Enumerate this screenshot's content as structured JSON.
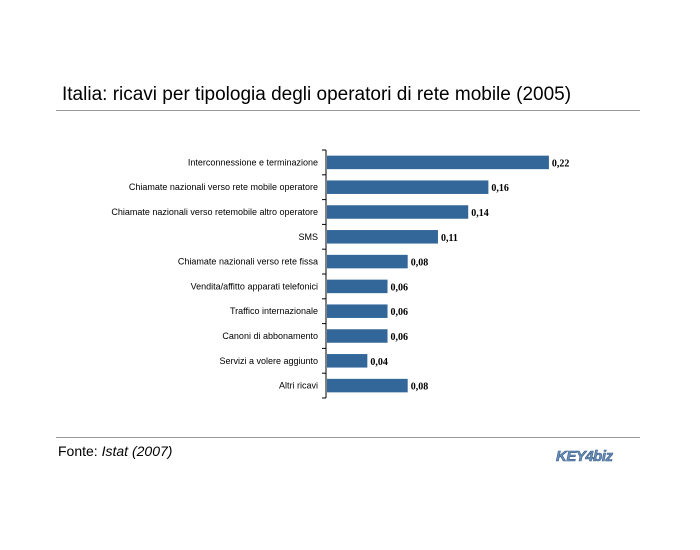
{
  "title": "Italia: ricavi per tipologia degli operatori di rete mobile (2005)",
  "source": {
    "label": "Fonte:",
    "name": "Istat",
    "year": "(2007)"
  },
  "logo": {
    "text": "KEY4biz"
  },
  "colors": {
    "bar": "#336699",
    "axis": "#000000"
  },
  "chart_data": {
    "type": "bar",
    "orientation": "horizontal",
    "categories": [
      "Interconnessione e terminazione",
      "Chiamate nazionali verso rete mobile operatore",
      "Chiamate nazionali verso retemobile altro operatore",
      "SMS",
      "Chiamate nazionali verso rete fissa",
      "Vendita/affitto apparati telefonici",
      "Traffico internazionale",
      "Canoni di abbonamento",
      "Servizi a volere aggiunto",
      "Altri ricavi"
    ],
    "values": [
      0.22,
      0.16,
      0.14,
      0.11,
      0.08,
      0.06,
      0.06,
      0.06,
      0.04,
      0.08
    ],
    "value_labels": [
      "0,22",
      "0,16",
      "0,14",
      "0,11",
      "0,08",
      "0,06",
      "0,06",
      "0,06",
      "0,04",
      "0,08"
    ],
    "xlim": [
      0,
      0.23
    ],
    "grid": false,
    "legend": "none"
  }
}
